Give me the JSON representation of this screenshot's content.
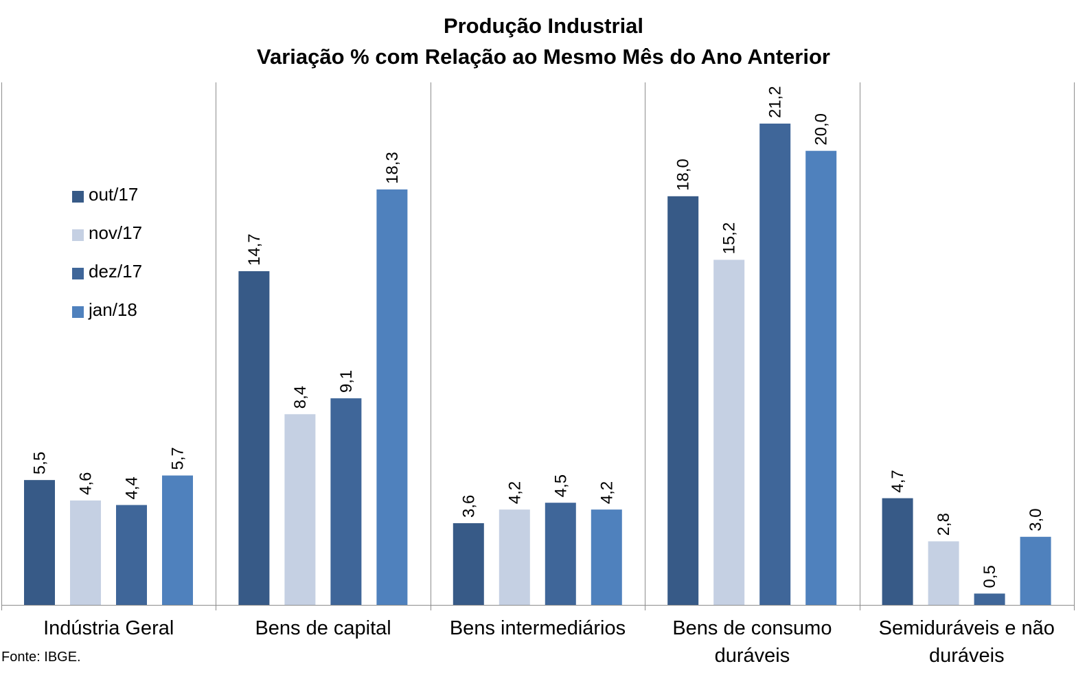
{
  "chart_data": {
    "type": "bar",
    "title": "Produção Industrial",
    "subtitle": "Variação % com Relação ao Mesmo Mês do Ano Anterior",
    "categories": [
      [
        "Indústria Geral"
      ],
      [
        "Bens de capital"
      ],
      [
        "Bens intermediários"
      ],
      [
        "Bens de consumo",
        "duráveis"
      ],
      [
        "Semiduráveis e não",
        "duráveis"
      ]
    ],
    "series": [
      {
        "name": "out/17",
        "color": "#375A87",
        "values": [
          5.5,
          14.7,
          3.6,
          18.0,
          4.7
        ],
        "labels": [
          "5,5",
          "14,7",
          "3,6",
          "18,0",
          "4,7"
        ]
      },
      {
        "name": "nov/17",
        "color": "#C5D0E3",
        "values": [
          4.6,
          8.4,
          4.2,
          15.2,
          2.8
        ],
        "labels": [
          "4,6",
          "8,4",
          "4,2",
          "15,2",
          "2,8"
        ]
      },
      {
        "name": "dez/17",
        "color": "#3F6699",
        "values": [
          4.4,
          9.1,
          4.5,
          21.2,
          0.5
        ],
        "labels": [
          "4,4",
          "9,1",
          "4,5",
          "21,2",
          "0,5"
        ]
      },
      {
        "name": "jan/18",
        "color": "#4F81BD",
        "values": [
          5.7,
          18.3,
          4.2,
          20.0,
          3.0
        ],
        "labels": [
          "5,7",
          "18,3",
          "4,2",
          "20,0",
          "3,0"
        ]
      }
    ],
    "ylim": [
      0,
      21.2
    ],
    "grid": false,
    "legend_position": "left"
  },
  "source_note": "Fonte: IBGE."
}
